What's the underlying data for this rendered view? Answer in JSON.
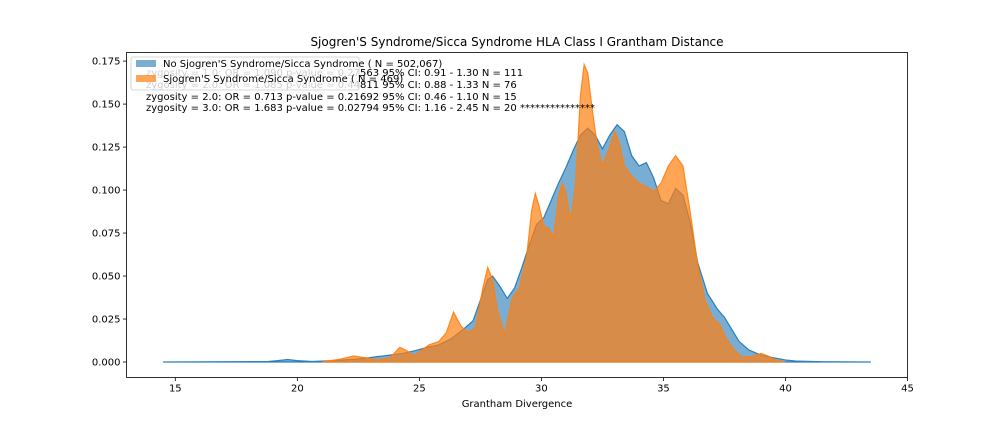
{
  "chart_data": {
    "type": "area",
    "title": "Sjogren'S Syndrome/Sicca Syndrome HLA Class I Grantham Distance",
    "xlabel": "Grantham Divergence",
    "ylabel": "",
    "xlim": [
      13.0,
      45.0
    ],
    "ylim": [
      -0.009,
      0.18
    ],
    "xticks": [
      15,
      20,
      25,
      30,
      35,
      40,
      45
    ],
    "yticks": [
      0.0,
      0.025,
      0.05,
      0.075,
      0.1,
      0.125,
      0.15,
      0.175
    ],
    "ytick_labels": [
      "0.000",
      "0.025",
      "0.050",
      "0.075",
      "0.100",
      "0.125",
      "0.150",
      "0.175"
    ],
    "grid": false,
    "legend_position": "top-left",
    "series": [
      {
        "name": "No Sjogren'S Syndrome/Sicca Syndrome ( N = 502,067)",
        "color": "#1f77b4",
        "points": [
          [
            14.5,
            0.0
          ],
          [
            18.8,
            0.0003
          ],
          [
            19.2,
            0.0008
          ],
          [
            19.6,
            0.0015
          ],
          [
            20.0,
            0.0008
          ],
          [
            20.6,
            0.0003
          ],
          [
            21.5,
            0.0008
          ],
          [
            22.2,
            0.0015
          ],
          [
            22.8,
            0.0022
          ],
          [
            23.3,
            0.0032
          ],
          [
            23.8,
            0.004
          ],
          [
            24.3,
            0.005
          ],
          [
            24.8,
            0.0065
          ],
          [
            25.3,
            0.0085
          ],
          [
            25.8,
            0.01
          ],
          [
            26.3,
            0.0135
          ],
          [
            26.8,
            0.019
          ],
          [
            27.2,
            0.024
          ],
          [
            27.5,
            0.036
          ],
          [
            27.8,
            0.048
          ],
          [
            28.0,
            0.05
          ],
          [
            28.3,
            0.044
          ],
          [
            28.6,
            0.037
          ],
          [
            28.9,
            0.043
          ],
          [
            29.2,
            0.055
          ],
          [
            29.5,
            0.068
          ],
          [
            29.8,
            0.08
          ],
          [
            30.1,
            0.084
          ],
          [
            30.4,
            0.094
          ],
          [
            30.7,
            0.104
          ],
          [
            31.0,
            0.113
          ],
          [
            31.3,
            0.123
          ],
          [
            31.6,
            0.132
          ],
          [
            31.9,
            0.136
          ],
          [
            32.2,
            0.132
          ],
          [
            32.5,
            0.124
          ],
          [
            32.8,
            0.132
          ],
          [
            33.1,
            0.138
          ],
          [
            33.4,
            0.134
          ],
          [
            33.7,
            0.12
          ],
          [
            34.0,
            0.114
          ],
          [
            34.3,
            0.116
          ],
          [
            34.6,
            0.107
          ],
          [
            34.9,
            0.094
          ],
          [
            35.2,
            0.092
          ],
          [
            35.5,
            0.101
          ],
          [
            35.8,
            0.097
          ],
          [
            36.1,
            0.081
          ],
          [
            36.4,
            0.058
          ],
          [
            36.8,
            0.04
          ],
          [
            37.2,
            0.031
          ],
          [
            37.5,
            0.026
          ],
          [
            37.8,
            0.019
          ],
          [
            38.1,
            0.012
          ],
          [
            38.5,
            0.007
          ],
          [
            39.0,
            0.004
          ],
          [
            39.5,
            0.0025
          ],
          [
            40.0,
            0.0012
          ],
          [
            40.5,
            0.0005
          ],
          [
            41.5,
            0.0002
          ],
          [
            43.5,
            0.0
          ]
        ]
      },
      {
        "name": "Sjogren'S Syndrome/Sicca Syndrome ( N = 469)",
        "color": "#ff7f0e",
        "points": [
          [
            21.0,
            0.0
          ],
          [
            21.8,
            0.0018
          ],
          [
            22.3,
            0.0035
          ],
          [
            22.8,
            0.0025
          ],
          [
            23.3,
            0.0012
          ],
          [
            23.8,
            0.0025
          ],
          [
            24.2,
            0.0085
          ],
          [
            24.5,
            0.0065
          ],
          [
            24.8,
            0.0035
          ],
          [
            25.1,
            0.007
          ],
          [
            25.4,
            0.01
          ],
          [
            25.8,
            0.012
          ],
          [
            26.1,
            0.017
          ],
          [
            26.4,
            0.029
          ],
          [
            26.7,
            0.021
          ],
          [
            27.0,
            0.017
          ],
          [
            27.3,
            0.02
          ],
          [
            27.6,
            0.043
          ],
          [
            27.8,
            0.055
          ],
          [
            28.0,
            0.048
          ],
          [
            28.2,
            0.03
          ],
          [
            28.5,
            0.016
          ],
          [
            28.8,
            0.037
          ],
          [
            29.1,
            0.043
          ],
          [
            29.4,
            0.062
          ],
          [
            29.6,
            0.088
          ],
          [
            29.75,
            0.098
          ],
          [
            29.9,
            0.091
          ],
          [
            30.1,
            0.079
          ],
          [
            30.3,
            0.078
          ],
          [
            30.5,
            0.072
          ],
          [
            30.7,
            0.096
          ],
          [
            30.85,
            0.104
          ],
          [
            31.0,
            0.099
          ],
          [
            31.2,
            0.082
          ],
          [
            31.4,
            0.103
          ],
          [
            31.6,
            0.155
          ],
          [
            31.75,
            0.173
          ],
          [
            31.9,
            0.168
          ],
          [
            32.1,
            0.145
          ],
          [
            32.3,
            0.125
          ],
          [
            32.5,
            0.114
          ],
          [
            32.8,
            0.125
          ],
          [
            33.0,
            0.134
          ],
          [
            33.2,
            0.127
          ],
          [
            33.4,
            0.114
          ],
          [
            33.7,
            0.108
          ],
          [
            34.0,
            0.104
          ],
          [
            34.3,
            0.102
          ],
          [
            34.6,
            0.099
          ],
          [
            34.9,
            0.104
          ],
          [
            35.2,
            0.114
          ],
          [
            35.5,
            0.12
          ],
          [
            35.8,
            0.114
          ],
          [
            36.1,
            0.087
          ],
          [
            36.4,
            0.057
          ],
          [
            36.7,
            0.036
          ],
          [
            37.0,
            0.026
          ],
          [
            37.3,
            0.022
          ],
          [
            37.6,
            0.013
          ],
          [
            37.9,
            0.007
          ],
          [
            38.2,
            0.003
          ],
          [
            38.6,
            0.003
          ],
          [
            39.0,
            0.005
          ],
          [
            39.3,
            0.0035
          ],
          [
            39.6,
            0.001
          ],
          [
            40.0,
            0.0
          ]
        ]
      }
    ],
    "annotations": [
      "zygosity = 1.0:  OR = 1.090   p-value = 0.27563   95% CI: 0.91 - 1.30   N = 111",
      "zygosity = 2.0:  OR = 1.085   p-value = 0.44811   95% CI: 0.88 - 1.33   N = 76",
      "zygosity = 2.0:  OR = 0.713   p-value = 0.21692   95% CI: 0.46 - 1.10   N = 15",
      "zygosity = 3.0:  OR = 1.683   p-value = 0.02794   95% CI: 1.16 - 2.45   N = 20 ***************"
    ]
  }
}
